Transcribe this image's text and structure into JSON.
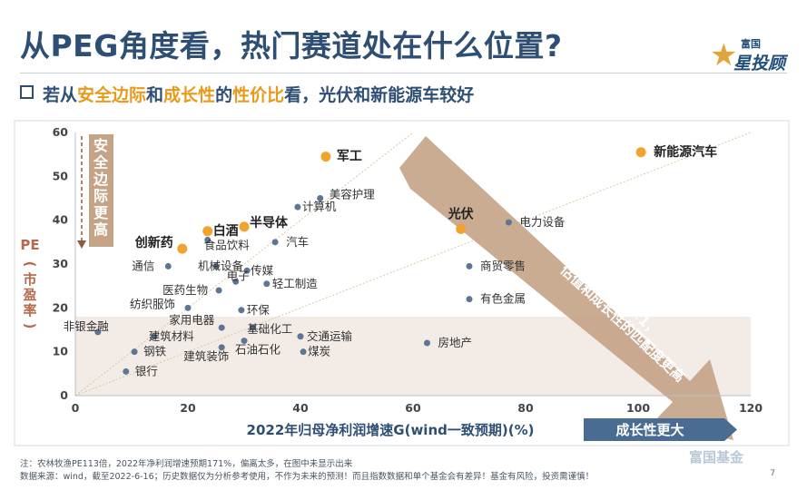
{
  "header": {
    "title": "从PEG角度看，热门赛道处在什么位置?",
    "subtitle_parts": [
      {
        "text": "若从",
        "hl": false
      },
      {
        "text": "安全边际",
        "hl": true
      },
      {
        "text": "和",
        "hl": false
      },
      {
        "text": "成长性",
        "hl": true
      },
      {
        "text": "的",
        "hl": false
      },
      {
        "text": "性价比",
        "hl": true
      },
      {
        "text": "看，光伏和新能源车较好",
        "hl": false
      }
    ],
    "logo_line1": "富国",
    "logo_line2": "星投顾",
    "logo_star": "★"
  },
  "colors": {
    "title": "#2e4f73",
    "highlight": "#e79a1c",
    "point_blue": "#5d7694",
    "point_orange": "#f2a32e",
    "arrow": "#c4a387",
    "axis_label": "#2e4f73",
    "pe_label": "#b56b4e"
  },
  "chart_data": {
    "type": "scatter",
    "xlabel": "2022年归母净利润增速G(wind一致预期)(%)",
    "ylabel": "PE\n(市盈率)",
    "xlim": [
      0,
      120
    ],
    "ylim": [
      0,
      60
    ],
    "xticks": [
      0,
      20,
      40,
      60,
      80,
      100,
      120
    ],
    "yticks": [
      0,
      10,
      20,
      30,
      40,
      50,
      60
    ],
    "grid": false,
    "points": [
      {
        "label": "新能源汽车",
        "x": 100.5,
        "y": 55.5,
        "highlight": true
      },
      {
        "label": "军工",
        "x": 44.5,
        "y": 54.5,
        "highlight": true
      },
      {
        "label": "光伏",
        "x": 68.5,
        "y": 38,
        "highlight": true
      },
      {
        "label": "半导体",
        "x": 30,
        "y": 38.5,
        "highlight": true
      },
      {
        "label": "白酒",
        "x": 23.5,
        "y": 37.5,
        "highlight": true
      },
      {
        "label": "创新药",
        "x": 19,
        "y": 33.5,
        "highlight": true
      },
      {
        "label": "美容护理",
        "x": 43.5,
        "y": 45,
        "highlight": false
      },
      {
        "label": "计算机",
        "x": 39.5,
        "y": 43,
        "highlight": false
      },
      {
        "label": "电力设备",
        "x": 77,
        "y": 39.5,
        "highlight": false
      },
      {
        "label": "汽车",
        "x": 35.5,
        "y": 35,
        "highlight": false
      },
      {
        "label": "食品饮料",
        "x": 23.5,
        "y": 35.5,
        "highlight": false
      },
      {
        "label": "通信",
        "x": 16.5,
        "y": 29.5,
        "highlight": false
      },
      {
        "label": "机械设备",
        "x": 25,
        "y": 29.5,
        "highlight": false
      },
      {
        "label": "传媒",
        "x": 30.5,
        "y": 28.5,
        "highlight": false
      },
      {
        "label": "商贸零售",
        "x": 70,
        "y": 29.5,
        "highlight": false
      },
      {
        "label": "医药生物",
        "x": 25.5,
        "y": 24,
        "highlight": false
      },
      {
        "label": "电子",
        "x": 28.5,
        "y": 26,
        "highlight": false
      },
      {
        "label": "轻工制造",
        "x": 34,
        "y": 25.5,
        "highlight": false
      },
      {
        "label": "有色金属",
        "x": 70,
        "y": 22,
        "highlight": false
      },
      {
        "label": "纺织服饰",
        "x": 20,
        "y": 20,
        "highlight": false
      },
      {
        "label": "环保",
        "x": 29.5,
        "y": 19.5,
        "highlight": false
      },
      {
        "label": "家用电器",
        "x": 26,
        "y": 15.5,
        "highlight": false
      },
      {
        "label": "基础化工",
        "x": 31.5,
        "y": 15.5,
        "highlight": false
      },
      {
        "label": "非银金融",
        "x": 4,
        "y": 14.5,
        "highlight": false
      },
      {
        "label": "建筑材料",
        "x": 14,
        "y": 13.5,
        "highlight": false
      },
      {
        "label": "交通运输",
        "x": 40,
        "y": 13.5,
        "highlight": false
      },
      {
        "label": "石油石化",
        "x": 30,
        "y": 12.5,
        "highlight": false
      },
      {
        "label": "房地产",
        "x": 62.5,
        "y": 12,
        "highlight": false
      },
      {
        "label": "钢铁",
        "x": 10.5,
        "y": 10,
        "highlight": false
      },
      {
        "label": "煤炭",
        "x": 40.5,
        "y": 10,
        "highlight": false
      },
      {
        "label": "建筑装饰",
        "x": 26,
        "y": 11,
        "highlight": false
      },
      {
        "label": "银行",
        "x": 9,
        "y": 5.5,
        "highlight": false
      }
    ],
    "annotations": {
      "vertical_arrow": "安全边际更高",
      "diagonal_arrow": "PEG<1，估值和成长性的匹配度更高",
      "growth_badge": "成长性更大"
    }
  },
  "footer": {
    "note": "注：农林牧渔PE113倍，2022年净利润增速预期171%，偏离太多，在图中未显示出来",
    "source": "数据来源：wind，截至2022-6-16；历史数据仅为分析参考使用，不作为未来的预测！而且指数数据和单个基金会有差异！基金有风险，投资需谨慎！",
    "page": "7",
    "brand": "富国基金"
  }
}
